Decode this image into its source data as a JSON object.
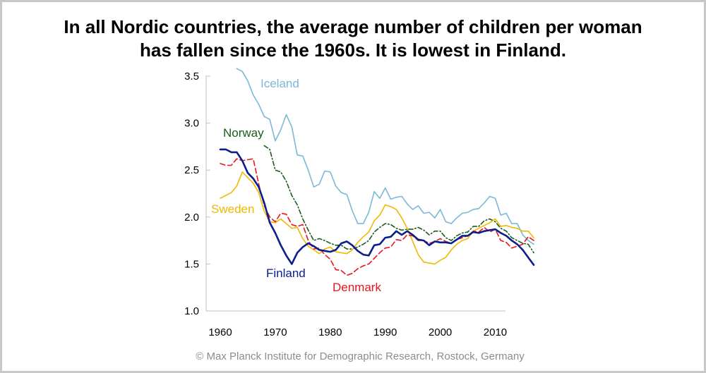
{
  "title": {
    "line1": "In all Nordic countries, the average number of children per woman",
    "line2": "has fallen since the 1960s. It is lowest in Finland."
  },
  "credit": "© Max Planck Institute for Demographic Research, Rostock, Germany",
  "chart_data": {
    "type": "line",
    "title": "In all Nordic countries, the average number of children per woman has fallen since the 1960s. It is lowest in Finland.",
    "xlabel": "",
    "ylabel": "",
    "xlim": [
      1960,
      2017
    ],
    "ylim": [
      1.0,
      3.5
    ],
    "x_ticks": [
      "1960",
      "1970",
      "1980",
      "1990",
      "2000",
      "2010"
    ],
    "y_ticks": [
      "1.0",
      "1.5",
      "2.0",
      "2.5",
      "3.0",
      "3.5"
    ],
    "grid": false,
    "legend": "inline labels",
    "series": [
      {
        "name": "Iceland",
        "color": "#7ab8d6",
        "dash": "solid",
        "x": [
          1963,
          1964,
          1965,
          1966,
          1967,
          1968,
          1969,
          1970,
          1971,
          1972,
          1973,
          1974,
          1975,
          1976,
          1977,
          1978,
          1979,
          1980,
          1981,
          1982,
          1983,
          1984,
          1985,
          1986,
          1987,
          1988,
          1989,
          1990,
          1991,
          1992,
          1993,
          1994,
          1995,
          1996,
          1997,
          1998,
          1999,
          2000,
          2001,
          2002,
          2003,
          2004,
          2005,
          2006,
          2007,
          2008,
          2009,
          2010,
          2011,
          2012,
          2013,
          2014,
          2015,
          2016,
          2017
        ],
        "y": [
          3.58,
          3.55,
          3.45,
          3.3,
          3.2,
          3.07,
          3.04,
          2.81,
          2.93,
          3.09,
          2.96,
          2.66,
          2.65,
          2.5,
          2.32,
          2.35,
          2.49,
          2.48,
          2.33,
          2.26,
          2.24,
          2.07,
          1.93,
          1.93,
          2.05,
          2.27,
          2.2,
          2.31,
          2.19,
          2.21,
          2.22,
          2.14,
          2.08,
          2.12,
          2.04,
          2.05,
          1.99,
          2.08,
          1.95,
          1.93,
          1.99,
          2.04,
          2.05,
          2.08,
          2.09,
          2.15,
          2.22,
          2.2,
          2.02,
          2.04,
          1.93,
          1.93,
          1.81,
          1.75,
          1.71
        ]
      },
      {
        "name": "Norway",
        "color": "#1a5c1a",
        "dash": "dash-dot",
        "x": [
          1968,
          1969,
          1970,
          1971,
          1972,
          1973,
          1974,
          1975,
          1976,
          1977,
          1978,
          1979,
          1980,
          1981,
          1982,
          1983,
          1984,
          1985,
          1986,
          1987,
          1988,
          1989,
          1990,
          1991,
          1992,
          1993,
          1994,
          1995,
          1996,
          1997,
          1998,
          1999,
          2000,
          2001,
          2002,
          2003,
          2004,
          2005,
          2006,
          2007,
          2008,
          2009,
          2010,
          2011,
          2012,
          2013,
          2014,
          2015,
          2016,
          2017
        ],
        "y": [
          2.76,
          2.72,
          2.5,
          2.48,
          2.38,
          2.23,
          2.13,
          1.98,
          1.86,
          1.75,
          1.77,
          1.75,
          1.72,
          1.7,
          1.7,
          1.66,
          1.66,
          1.68,
          1.71,
          1.75,
          1.84,
          1.89,
          1.93,
          1.92,
          1.88,
          1.86,
          1.87,
          1.87,
          1.89,
          1.86,
          1.81,
          1.85,
          1.85,
          1.78,
          1.75,
          1.8,
          1.83,
          1.84,
          1.9,
          1.9,
          1.96,
          1.98,
          1.95,
          1.88,
          1.85,
          1.78,
          1.75,
          1.72,
          1.71,
          1.62
        ]
      },
      {
        "name": "Sweden",
        "color": "#f0b800",
        "dash": "solid",
        "x": [
          1960,
          1961,
          1962,
          1963,
          1964,
          1965,
          1966,
          1967,
          1968,
          1969,
          1970,
          1971,
          1972,
          1973,
          1974,
          1975,
          1976,
          1977,
          1978,
          1979,
          1980,
          1981,
          1982,
          1983,
          1984,
          1985,
          1986,
          1987,
          1988,
          1989,
          1990,
          1991,
          1992,
          1993,
          1994,
          1995,
          1996,
          1997,
          1998,
          1999,
          2000,
          2001,
          2002,
          2003,
          2004,
          2005,
          2006,
          2007,
          2008,
          2009,
          2010,
          2011,
          2012,
          2013,
          2014,
          2015,
          2016,
          2017
        ],
        "y": [
          2.2,
          2.23,
          2.26,
          2.33,
          2.48,
          2.42,
          2.36,
          2.26,
          2.06,
          1.95,
          1.94,
          1.98,
          1.93,
          1.88,
          1.89,
          1.77,
          1.69,
          1.65,
          1.61,
          1.66,
          1.68,
          1.63,
          1.62,
          1.61,
          1.65,
          1.73,
          1.79,
          1.84,
          1.96,
          2.02,
          2.13,
          2.11,
          2.08,
          1.99,
          1.88,
          1.74,
          1.6,
          1.52,
          1.51,
          1.5,
          1.54,
          1.57,
          1.65,
          1.71,
          1.75,
          1.77,
          1.85,
          1.88,
          1.91,
          1.94,
          1.98,
          1.9,
          1.91,
          1.89,
          1.88,
          1.85,
          1.85,
          1.78
        ]
      },
      {
        "name": "Denmark",
        "color": "#e8141e",
        "dash": "dashed",
        "x": [
          1960,
          1961,
          1962,
          1963,
          1964,
          1965,
          1966,
          1967,
          1968,
          1969,
          1970,
          1971,
          1972,
          1973,
          1974,
          1975,
          1976,
          1977,
          1978,
          1979,
          1980,
          1981,
          1982,
          1983,
          1984,
          1985,
          1986,
          1987,
          1988,
          1989,
          1990,
          1991,
          1992,
          1993,
          1994,
          1995,
          1996,
          1997,
          1998,
          1999,
          2000,
          2001,
          2002,
          2003,
          2004,
          2005,
          2006,
          2007,
          2008,
          2009,
          2010,
          2011,
          2012,
          2013,
          2014,
          2015,
          2016,
          2017
        ],
        "y": [
          2.57,
          2.55,
          2.55,
          2.62,
          2.6,
          2.61,
          2.62,
          2.35,
          2.12,
          2.0,
          1.95,
          2.04,
          2.03,
          1.92,
          1.9,
          1.92,
          1.75,
          1.66,
          1.67,
          1.6,
          1.55,
          1.44,
          1.43,
          1.38,
          1.4,
          1.45,
          1.48,
          1.5,
          1.56,
          1.62,
          1.67,
          1.68,
          1.76,
          1.75,
          1.81,
          1.8,
          1.75,
          1.75,
          1.72,
          1.74,
          1.77,
          1.74,
          1.72,
          1.76,
          1.78,
          1.8,
          1.85,
          1.84,
          1.89,
          1.84,
          1.87,
          1.75,
          1.73,
          1.67,
          1.69,
          1.71,
          1.79,
          1.75
        ]
      },
      {
        "name": "Finland",
        "color": "#0a1e8c",
        "dash": "solid",
        "x": [
          1960,
          1961,
          1962,
          1963,
          1964,
          1965,
          1966,
          1967,
          1968,
          1969,
          1970,
          1971,
          1972,
          1973,
          1974,
          1975,
          1976,
          1977,
          1978,
          1979,
          1980,
          1981,
          1982,
          1983,
          1984,
          1985,
          1986,
          1987,
          1988,
          1989,
          1990,
          1991,
          1992,
          1993,
          1994,
          1995,
          1996,
          1997,
          1998,
          1999,
          2000,
          2001,
          2002,
          2003,
          2004,
          2005,
          2006,
          2007,
          2008,
          2009,
          2010,
          2011,
          2012,
          2013,
          2014,
          2015,
          2016,
          2017
        ],
        "y": [
          2.72,
          2.72,
          2.69,
          2.69,
          2.6,
          2.47,
          2.41,
          2.32,
          2.15,
          1.94,
          1.83,
          1.7,
          1.59,
          1.5,
          1.62,
          1.68,
          1.72,
          1.69,
          1.65,
          1.64,
          1.63,
          1.65,
          1.72,
          1.74,
          1.7,
          1.64,
          1.6,
          1.59,
          1.7,
          1.71,
          1.78,
          1.79,
          1.85,
          1.81,
          1.85,
          1.81,
          1.76,
          1.75,
          1.7,
          1.74,
          1.73,
          1.73,
          1.72,
          1.76,
          1.8,
          1.8,
          1.84,
          1.83,
          1.85,
          1.86,
          1.87,
          1.83,
          1.8,
          1.75,
          1.71,
          1.65,
          1.57,
          1.49
        ]
      }
    ]
  }
}
